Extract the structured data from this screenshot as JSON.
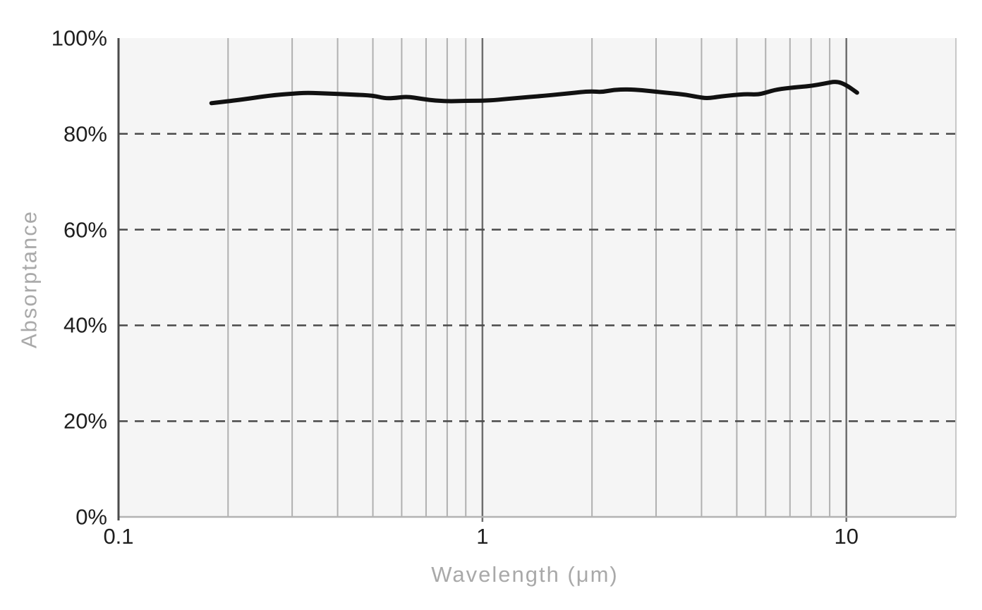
{
  "chart_data": {
    "type": "line",
    "title": "",
    "xlabel": "Wavelength (μm)",
    "ylabel": "Absorptance",
    "x_scale": "log",
    "xlim": [
      0.1,
      20
    ],
    "ylim": [
      0,
      100
    ],
    "grid": "on",
    "legend": "none",
    "x_ticks": [
      {
        "value": 0.1,
        "label": "0.1"
      },
      {
        "value": 1,
        "label": "1"
      },
      {
        "value": 10,
        "label": "10"
      }
    ],
    "y_ticks": [
      {
        "value": 0,
        "label": "0%"
      },
      {
        "value": 20,
        "label": "20%"
      },
      {
        "value": 40,
        "label": "40%"
      },
      {
        "value": 60,
        "label": "60%"
      },
      {
        "value": 80,
        "label": "80%"
      },
      {
        "value": 100,
        "label": "100%"
      }
    ],
    "x_gridlines_minor": [
      0.2,
      0.3,
      0.4,
      0.5,
      0.6,
      0.7,
      0.8,
      0.9,
      2,
      3,
      4,
      5,
      6,
      7,
      8,
      9
    ],
    "x_gridlines_major": [
      1,
      10
    ],
    "x_gridlines_edge": [
      20
    ],
    "y_gridlines_dashed": [
      20,
      40,
      60,
      80
    ],
    "series": [
      {
        "name": "absorptance-spectrum",
        "units": {
          "x": "μm",
          "y": "%"
        },
        "points": [
          [
            0.18,
            86.4
          ],
          [
            0.2,
            86.8
          ],
          [
            0.23,
            87.4
          ],
          [
            0.26,
            88.0
          ],
          [
            0.3,
            88.4
          ],
          [
            0.33,
            88.6
          ],
          [
            0.38,
            88.4
          ],
          [
            0.44,
            88.2
          ],
          [
            0.5,
            88.0
          ],
          [
            0.54,
            87.4
          ],
          [
            0.58,
            87.5
          ],
          [
            0.62,
            87.8
          ],
          [
            0.68,
            87.3
          ],
          [
            0.75,
            86.9
          ],
          [
            0.82,
            86.8
          ],
          [
            0.9,
            86.9
          ],
          [
            1.0,
            86.9
          ],
          [
            1.1,
            87.1
          ],
          [
            1.25,
            87.5
          ],
          [
            1.45,
            87.9
          ],
          [
            1.65,
            88.3
          ],
          [
            1.85,
            88.7
          ],
          [
            2.0,
            88.9
          ],
          [
            2.12,
            88.7
          ],
          [
            2.3,
            89.2
          ],
          [
            2.5,
            89.3
          ],
          [
            2.75,
            89.1
          ],
          [
            3.0,
            88.8
          ],
          [
            3.3,
            88.5
          ],
          [
            3.6,
            88.2
          ],
          [
            3.9,
            87.7
          ],
          [
            4.15,
            87.4
          ],
          [
            4.5,
            87.8
          ],
          [
            4.9,
            88.1
          ],
          [
            5.3,
            88.3
          ],
          [
            5.7,
            88.2
          ],
          [
            6.0,
            88.6
          ],
          [
            6.45,
            89.3
          ],
          [
            7.2,
            89.7
          ],
          [
            8.0,
            90.0
          ],
          [
            8.7,
            90.5
          ],
          [
            9.4,
            91.0
          ],
          [
            10.0,
            90.2
          ],
          [
            10.7,
            88.6
          ]
        ]
      }
    ],
    "colors": {
      "curve": "#111111",
      "plot_background": "#f5f5f5",
      "page_background": "#ffffff",
      "grid_minor": "#b0b0b0",
      "grid_major": "#6e6e6e",
      "grid_edge": "#c8c8c8",
      "grid_dashed": "#4a4a4a",
      "axis_left": "#4a4a4a",
      "axis_bottom": "#b3b3b3",
      "tick_label": "#1f1f1f",
      "axis_title": "#a9a9a9"
    }
  }
}
